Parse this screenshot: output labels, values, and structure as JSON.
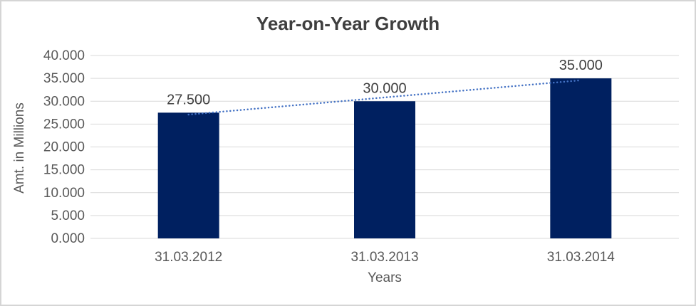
{
  "chart_data": {
    "type": "bar",
    "title": "Year-on-Year Growth",
    "xlabel": "Years",
    "ylabel": "Amt. in Millions",
    "categories": [
      "31.03.2012",
      "31.03.2013",
      "31.03.2014"
    ],
    "values": [
      27.5,
      30.0,
      35.0
    ],
    "value_labels": [
      "27.500",
      "30.000",
      "35.000"
    ],
    "y_ticks": [
      "0.000",
      "5.000",
      "10.000",
      "15.000",
      "20.000",
      "25.000",
      "30.000",
      "35.000",
      "40.000"
    ],
    "ylim": [
      0,
      40
    ],
    "grid": true,
    "legend": false,
    "bar_color": "#002060",
    "trendline": {
      "type": "linear",
      "style": "dotted",
      "color": "#4472C4"
    },
    "colors": {
      "gridline": "#D9D9D9",
      "tick_label": "#595959",
      "title": "#3F3F3F",
      "data_label": "#404040",
      "frame_border": "#D5D5D5",
      "background": "#FFFFFF"
    }
  }
}
